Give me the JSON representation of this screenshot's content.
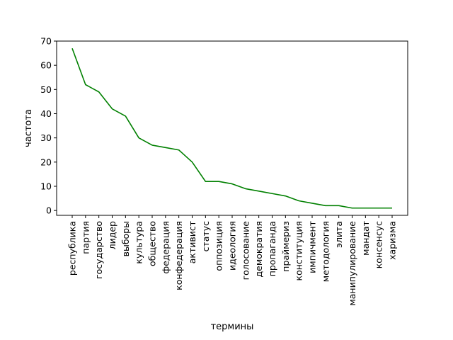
{
  "chart_data": {
    "type": "line",
    "title": "",
    "xlabel": "термины",
    "ylabel": "частота",
    "categories": [
      "республика",
      "партия",
      "государство",
      "лидер",
      "выборы",
      "культура",
      "общество",
      "федерация",
      "конфедерация",
      "активист",
      "статус",
      "оппозиция",
      "идеология",
      "голосование",
      "демократия",
      "пропаганда",
      "праймериз",
      "конституция",
      "импичмент",
      "методология",
      "элита",
      "манипулирование",
      "мандат",
      "консенсус",
      "харизма"
    ],
    "series": [
      {
        "values": [
          67,
          52,
          49,
          42,
          39,
          30,
          27,
          26,
          25,
          20,
          12,
          12,
          11,
          9,
          8,
          7,
          6,
          4,
          3,
          2,
          2,
          1,
          1,
          1,
          1
        ]
      }
    ],
    "ylim": [
      -2,
      70
    ],
    "yticks": [
      0,
      10,
      20,
      30,
      40,
      50,
      60,
      70
    ],
    "grid": false,
    "line_color": "#008000"
  }
}
